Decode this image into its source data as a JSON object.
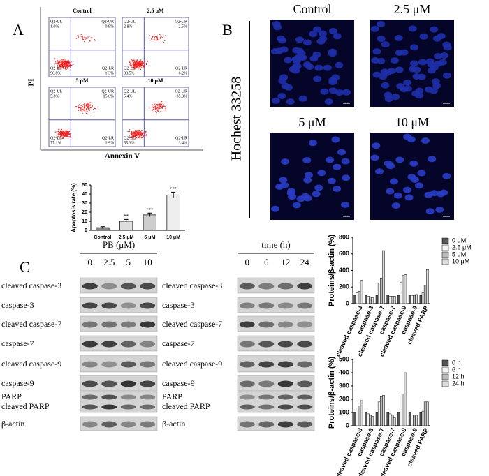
{
  "flow": {
    "panel_label": "A",
    "y_label": "PI",
    "x_label": "Annexin V",
    "plots": [
      {
        "title": "Control",
        "quadrants": [
          {
            "name": "Q2-UL",
            "pct": "1.0%"
          },
          {
            "name": "Q2-UR",
            "pct": "0.9%"
          },
          {
            "name": "Q2-LL",
            "pct": "96.8%"
          },
          {
            "name": "Q2-LR",
            "pct": "1.3%"
          }
        ]
      },
      {
        "title": "2.5 μM",
        "quadrants": [
          {
            "name": "Q2-UL",
            "pct": "2.8%"
          },
          {
            "name": "Q2-UR",
            "pct": "2.5%"
          },
          {
            "name": "Q2-LL",
            "pct": "88.5%"
          },
          {
            "name": "Q2-LR",
            "pct": "6.2%"
          }
        ]
      },
      {
        "title": "5 μM",
        "quadrants": [
          {
            "name": "Q2-UL",
            "pct": "5.3%"
          },
          {
            "name": "Q2-UR",
            "pct": "15.6%"
          },
          {
            "name": "Q2-LL",
            "pct": "77.1%"
          },
          {
            "name": "Q2-LR",
            "pct": "1.9%"
          }
        ]
      },
      {
        "title": "10 μM",
        "quadrants": [
          {
            "name": "Q2-UL",
            "pct": "5.4%"
          },
          {
            "name": "Q2-UR",
            "pct": "35.8%"
          },
          {
            "name": "Q2-LL",
            "pct": "55.3%"
          },
          {
            "name": "Q2-LR",
            "pct": "3.4%"
          }
        ]
      }
    ]
  },
  "hoechst": {
    "panel_label": "B",
    "stain": "Hochest 33258",
    "images": [
      "Control",
      "2.5 μM",
      "5 μM",
      "10 μM"
    ]
  },
  "blots": {
    "panel_label": "C",
    "panels": [
      {
        "header": "PB (μM)",
        "lanes": [
          "0",
          "2.5",
          "5",
          "10"
        ],
        "rows": [
          [
            "cleaved caspase-3"
          ],
          [
            "caspase-3"
          ],
          [
            "cleaved caspase-7"
          ],
          [
            "caspase-7"
          ],
          [
            "cleaved caspase-9"
          ],
          [
            "caspase-9"
          ],
          [
            "PARP",
            "cleaved PARP"
          ],
          [
            "β-actin"
          ]
        ]
      },
      {
        "header": "time (h)",
        "lanes": [
          "0",
          "6",
          "12",
          "24"
        ],
        "rows": [
          [
            "cleaved caspase-3"
          ],
          [
            "caspase-3"
          ],
          [
            "cleaved caspase-7"
          ],
          [
            "caspase-7"
          ],
          [
            "cleaved caspase-9"
          ],
          [
            "caspase-9"
          ],
          [
            "PARP",
            "cleaved PARP"
          ],
          [
            "β-actin"
          ]
        ]
      }
    ]
  },
  "chart_data": [
    {
      "type": "bar",
      "y_label": "Apoptosis rate (%)",
      "categories": [
        "Control",
        "2.5 μM",
        "5 μM",
        "10 μM"
      ],
      "values": [
        3,
        10,
        17,
        39
      ],
      "errors": [
        1,
        2,
        2,
        3
      ],
      "significance": [
        null,
        "**",
        "***",
        "***"
      ],
      "colors": [
        "#888888",
        "#dddddd",
        "#cccccc",
        "#eeeeee"
      ],
      "ylim": [
        0,
        50
      ],
      "yticks": [
        0,
        10,
        20,
        30,
        40,
        50
      ]
    },
    {
      "type": "bar",
      "y_label": "Proteins/β-actin (%)",
      "categories": [
        "cleaved caspase-3",
        "caspase-3",
        "cleaved caspase-7",
        "caspase-7",
        "cleaved caspase-9",
        "caspase-9",
        "cleaved PARP"
      ],
      "series": [
        {
          "name": "0 μM",
          "color": "#555555",
          "values": [
            100,
            100,
            100,
            100,
            100,
            100,
            100
          ]
        },
        {
          "name": "2.5 μM",
          "color": "#f4f4f4",
          "values": [
            130,
            90,
            250,
            90,
            260,
            100,
            130
          ]
        },
        {
          "name": "5 μM",
          "color": "#bbbbbb",
          "values": [
            150,
            80,
            300,
            90,
            340,
            100,
            220
          ]
        },
        {
          "name": "10 μM",
          "color": "#dddddd",
          "values": [
            280,
            70,
            640,
            90,
            350,
            110,
            410
          ]
        }
      ],
      "ylim": [
        0,
        800
      ],
      "yticks": [
        0,
        200,
        400,
        600,
        800
      ]
    },
    {
      "type": "bar",
      "y_label": "Proteins/β-actin (%)",
      "categories": [
        "cleaved caspase-3",
        "caspase-3",
        "cleaved caspase-7",
        "caspase-7",
        "cleaved caspase-9",
        "caspase-9",
        "cleaved PARP"
      ],
      "series": [
        {
          "name": "0 h",
          "color": "#555555",
          "values": [
            100,
            100,
            100,
            100,
            100,
            100,
            100
          ]
        },
        {
          "name": "6 h",
          "color": "#f4f4f4",
          "values": [
            120,
            90,
            180,
            90,
            240,
            80,
            110
          ]
        },
        {
          "name": "12 h",
          "color": "#bbbbbb",
          "values": [
            150,
            80,
            220,
            80,
            240,
            80,
            180
          ]
        },
        {
          "name": "24 h",
          "color": "#dddddd",
          "values": [
            190,
            70,
            230,
            60,
            400,
            80,
            180
          ]
        }
      ],
      "ylim": [
        0,
        500
      ],
      "yticks": [
        0,
        100,
        200,
        300,
        400,
        500
      ]
    }
  ]
}
